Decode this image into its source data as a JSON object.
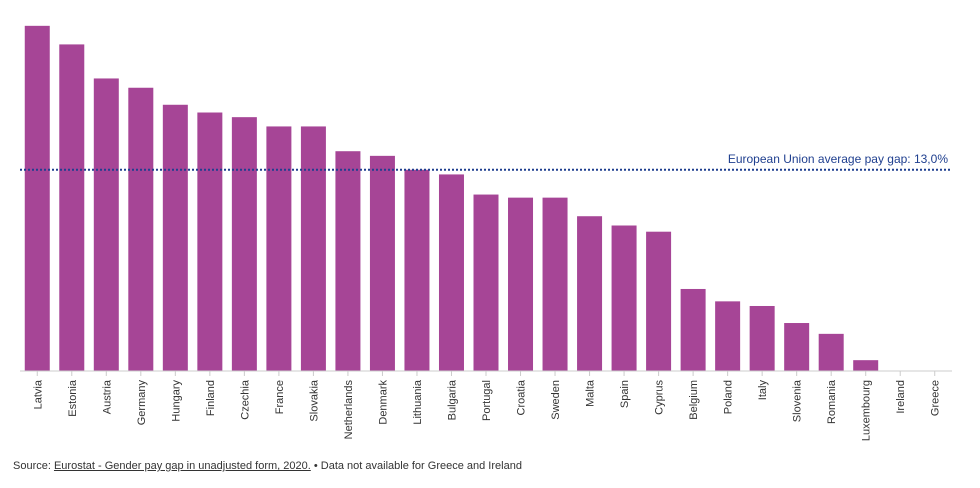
{
  "chart_data": {
    "type": "bar",
    "categories": [
      "Latvia",
      "Estonia",
      "Austria",
      "Germany",
      "Hungary",
      "Finland",
      "Czechia",
      "France",
      "Slovakia",
      "Netherlands",
      "Denmark",
      "Lithuania",
      "Bulgaria",
      "Portugal",
      "Croatia",
      "Sweden",
      "Malta",
      "Spain",
      "Cyprus",
      "Belgium",
      "Poland",
      "Italy",
      "Slovenia",
      "Romania",
      "Luxembourg",
      "Ireland",
      "Greece"
    ],
    "values": [
      22.3,
      21.1,
      18.9,
      18.3,
      17.2,
      16.7,
      16.4,
      15.8,
      15.8,
      14.2,
      13.9,
      13.0,
      12.7,
      11.4,
      11.2,
      11.2,
      10.0,
      9.4,
      9.0,
      5.3,
      4.5,
      4.2,
      3.1,
      2.4,
      0.7,
      null,
      null
    ],
    "ylim": [
      0,
      23
    ],
    "color": "#a64596",
    "reference_line": {
      "value": 13.0,
      "label": "European Union average pay gap: 13,0%",
      "color": "#1f3f8f"
    },
    "grid": false,
    "xlabel": "",
    "ylabel": ""
  },
  "footer": {
    "prefix": "Source: ",
    "link_text": "Eurostat - Gender pay gap in unadjusted form, 2020.",
    "note": " • Data not available for Greece and Ireland"
  }
}
